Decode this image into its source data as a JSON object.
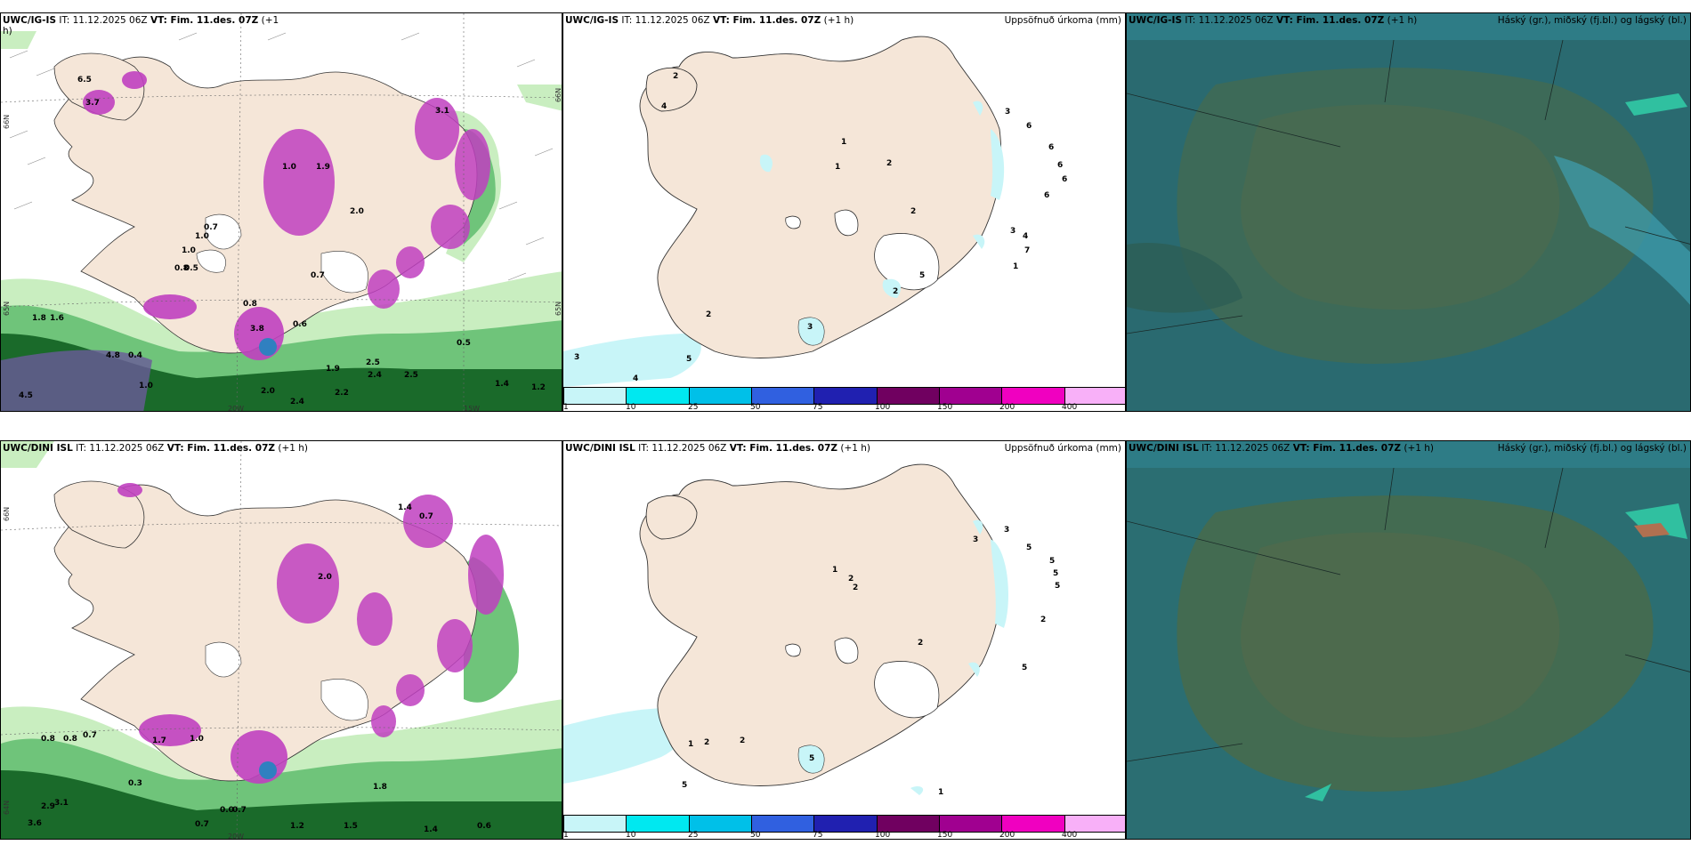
{
  "panels": {
    "top_left": {
      "title_model": "UWC/IG-IS",
      "title_rest": "IT: 11.12.2025 06Z",
      "title_vt": "VT: Fim. 11.des. 07Z",
      "title_lead": "(+1",
      "title_lead2": "h)"
    },
    "top_mid": {
      "title_model": "UWC/IG-IS",
      "title_rest": "IT: 11.12.2025 06Z",
      "title_vt": "VT: Fim. 11.des. 07Z",
      "title_lead": "(+1 h)",
      "right_title": "Uppsöfnuð úrkoma (mm)"
    },
    "top_right": {
      "title_model": "UWC/IG-IS",
      "title_rest": "IT: 11.12.2025 06Z",
      "title_vt": "VT: Fim. 11.des. 07Z",
      "title_lead": "(+1 h)",
      "right_title": "Háský (gr.), miðský (fj.bl.) og lágský (bl.)"
    },
    "bottom_left": {
      "title_model": "UWC/DINI ISL",
      "title_rest": "IT: 11.12.2025 06Z",
      "title_vt": "VT: Fim. 11.des. 07Z",
      "title_lead": "(+1 h)"
    },
    "bottom_mid": {
      "title_model": "UWC/DINI ISL",
      "title_rest": "IT: 11.12.2025 06Z",
      "title_vt": "VT: Fim. 11.des. 07Z",
      "title_lead": "(+1 h)",
      "right_title": "Uppsöfnuð úrkoma (mm)"
    },
    "bottom_right": {
      "title_model": "UWC/DINI ISL",
      "title_rest": "IT: 11.12.2025 06Z",
      "title_vt": "VT: Fim. 11.des. 07Z",
      "title_lead": "(+1 h)",
      "right_title": "Háský (gr.), miðský (fj.bl.) og lágský (bl.)"
    }
  },
  "colorbar": {
    "colors": [
      "#c8f5f8",
      "#00e8f0",
      "#00c0e8",
      "#3060e0",
      "#2020b0",
      "#700060",
      "#a00090",
      "#f000c0",
      "#f8b0f8"
    ],
    "labels": [
      "1",
      "10",
      "25",
      "50",
      "75",
      "100",
      "150",
      "200",
      "400"
    ]
  },
  "axes": {
    "lat_66": "66N",
    "lat_65": "65N",
    "lat_64": "64N",
    "lon_20": "20W",
    "lon_15": "15W"
  },
  "colors": {
    "land": "#f5e6d8",
    "sea": "#ffffff",
    "green_light": "#c9eec0",
    "green_mid": "#6fc47a",
    "green_dark": "#1a6a2a",
    "magenta": "#c040c0",
    "cloud_teal": "#2e7c86",
    "cloud_dark": "#2a5048"
  },
  "top_mid_labels": [
    "2",
    "4",
    "1",
    "1",
    "2",
    "2",
    "3",
    "6",
    "6",
    "6",
    "6",
    "6",
    "4",
    "3",
    "7",
    "1",
    "2",
    "3",
    "5",
    "4",
    "3",
    "2",
    "5"
  ],
  "bottom_mid_labels": [
    "1",
    "2",
    "2",
    "2",
    "3",
    "5",
    "5",
    "5",
    "5",
    "2",
    "5",
    "1",
    "2",
    "2",
    "5",
    "1",
    "5",
    "3"
  ],
  "top_left_labels": [
    "6.5",
    "3.7",
    "3.1",
    "1.0",
    "1.9",
    "2.0",
    "0.7",
    "1.0",
    "0.8",
    "0.5",
    "1.0",
    "1.6",
    "0.8",
    "3.8",
    "0.6",
    "0.7",
    "4.5",
    "4.8",
    "0.4",
    "1.0",
    "2.0",
    "2.4",
    "2.2",
    "1.9",
    "2.5",
    "2.4",
    "2.5",
    "0.5",
    "1.2",
    "1.4",
    "1.8"
  ],
  "bottom_left_labels": [
    "0.8",
    "0.8",
    "0.7",
    "1.7",
    "1.0",
    "3.6",
    "0.3",
    "2.9",
    "3.1",
    "0.7",
    "0.0",
    "0.7",
    "1.2",
    "1.5",
    "1.4",
    "0.6",
    "2.0",
    "1.4",
    "0.7",
    "1.8"
  ]
}
